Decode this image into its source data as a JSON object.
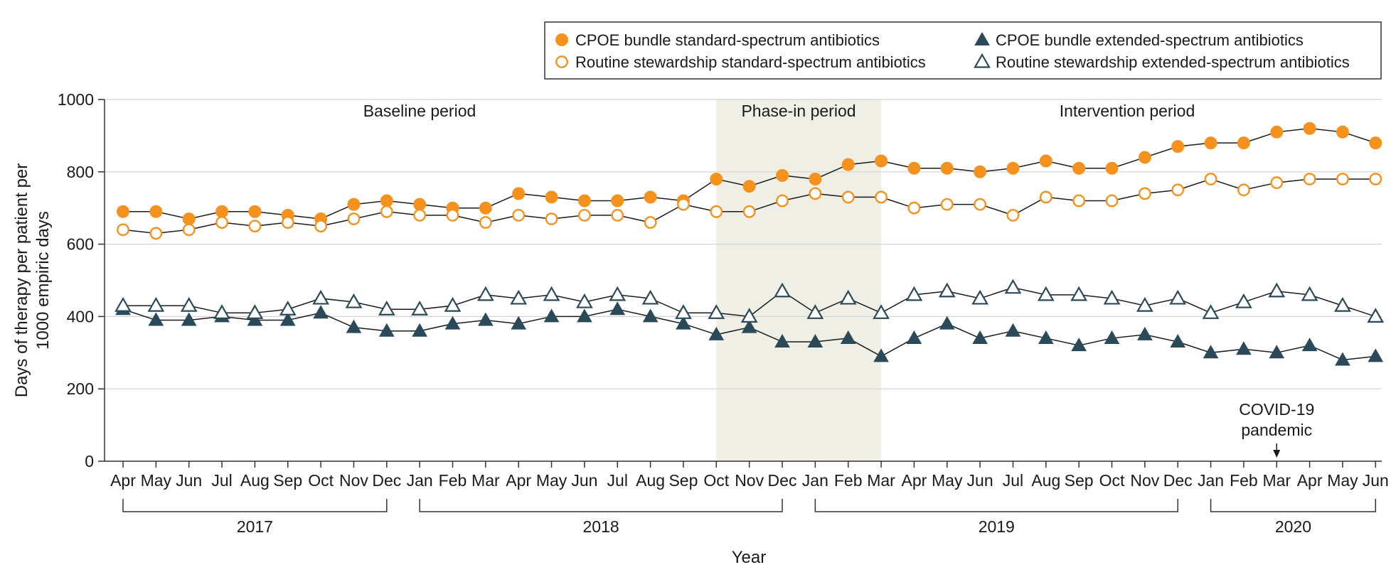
{
  "chart_data": {
    "type": "line",
    "title": "",
    "xlabel": "Year",
    "ylabel_lines": [
      "Days of therapy per patient per",
      "1000 empiric days"
    ],
    "ylim": [
      0,
      1000
    ],
    "yticks": [
      0,
      200,
      400,
      600,
      800,
      1000
    ],
    "categories": [
      "Apr",
      "May",
      "Jun",
      "Jul",
      "Aug",
      "Sep",
      "Oct",
      "Nov",
      "Dec",
      "Jan",
      "Feb",
      "Mar",
      "Apr",
      "May",
      "Jun",
      "Jul",
      "Aug",
      "Sep",
      "Oct",
      "Nov",
      "Dec",
      "Jan",
      "Feb",
      "Mar",
      "Apr",
      "May",
      "Jun",
      "Jul",
      "Aug",
      "Sep",
      "Oct",
      "Nov",
      "Dec",
      "Jan",
      "Feb",
      "Mar",
      "Apr",
      "May",
      "Jun"
    ],
    "years": [
      {
        "label": "2017",
        "start": 0,
        "end": 8
      },
      {
        "label": "2018",
        "start": 9,
        "end": 20
      },
      {
        "label": "2019",
        "start": 21,
        "end": 32
      },
      {
        "label": "2020",
        "start": 33,
        "end": 38
      }
    ],
    "periods": [
      {
        "label": "Baseline period",
        "start": 0,
        "end": 17,
        "shaded": false
      },
      {
        "label": "Phase-in period",
        "start": 18,
        "end": 23,
        "shaded": true
      },
      {
        "label": "Intervention period",
        "start": 23,
        "end": 38,
        "shaded": false
      }
    ],
    "shade_color": "#f0efe6",
    "annotation": {
      "lines": [
        "COVID-19",
        "pandemic"
      ],
      "index": 35
    },
    "series": [
      {
        "name": "CPOE bundle standard-spectrum antibiotics",
        "marker": "circle",
        "filled": true,
        "color": "#f5921e",
        "values": [
          690,
          690,
          670,
          690,
          690,
          680,
          670,
          710,
          720,
          710,
          700,
          700,
          740,
          730,
          720,
          720,
          730,
          720,
          780,
          760,
          790,
          780,
          820,
          830,
          810,
          810,
          800,
          810,
          830,
          810,
          810,
          840,
          870,
          880,
          880,
          910,
          920,
          910,
          880
        ]
      },
      {
        "name": "Routine stewardship standard-spectrum antibiotics",
        "marker": "circle",
        "filled": false,
        "color": "#f5921e",
        "values": [
          640,
          630,
          640,
          660,
          650,
          660,
          650,
          670,
          690,
          680,
          680,
          660,
          680,
          670,
          680,
          680,
          660,
          710,
          690,
          690,
          720,
          740,
          730,
          730,
          700,
          710,
          710,
          680,
          730,
          720,
          720,
          740,
          750,
          780,
          750,
          770,
          780,
          780,
          780
        ]
      },
      {
        "name": "CPOE bundle extended-spectrum antibiotics",
        "marker": "triangle",
        "filled": true,
        "color": "#2b4a59",
        "values": [
          420,
          390,
          390,
          400,
          390,
          390,
          410,
          370,
          360,
          360,
          380,
          390,
          380,
          400,
          400,
          420,
          400,
          380,
          350,
          370,
          330,
          330,
          340,
          290,
          340,
          380,
          340,
          360,
          340,
          320,
          340,
          350,
          330,
          300,
          310,
          300,
          320,
          280,
          290
        ]
      },
      {
        "name": "Routine stewardship extended-spectrum antibiotics",
        "marker": "triangle",
        "filled": false,
        "color": "#2b4a59",
        "values": [
          430,
          430,
          430,
          410,
          410,
          420,
          450,
          440,
          420,
          420,
          430,
          460,
          450,
          460,
          440,
          460,
          450,
          410,
          410,
          400,
          470,
          410,
          450,
          410,
          460,
          470,
          450,
          480,
          460,
          460,
          450,
          430,
          450,
          410,
          440,
          470,
          460,
          430,
          400
        ]
      }
    ]
  }
}
